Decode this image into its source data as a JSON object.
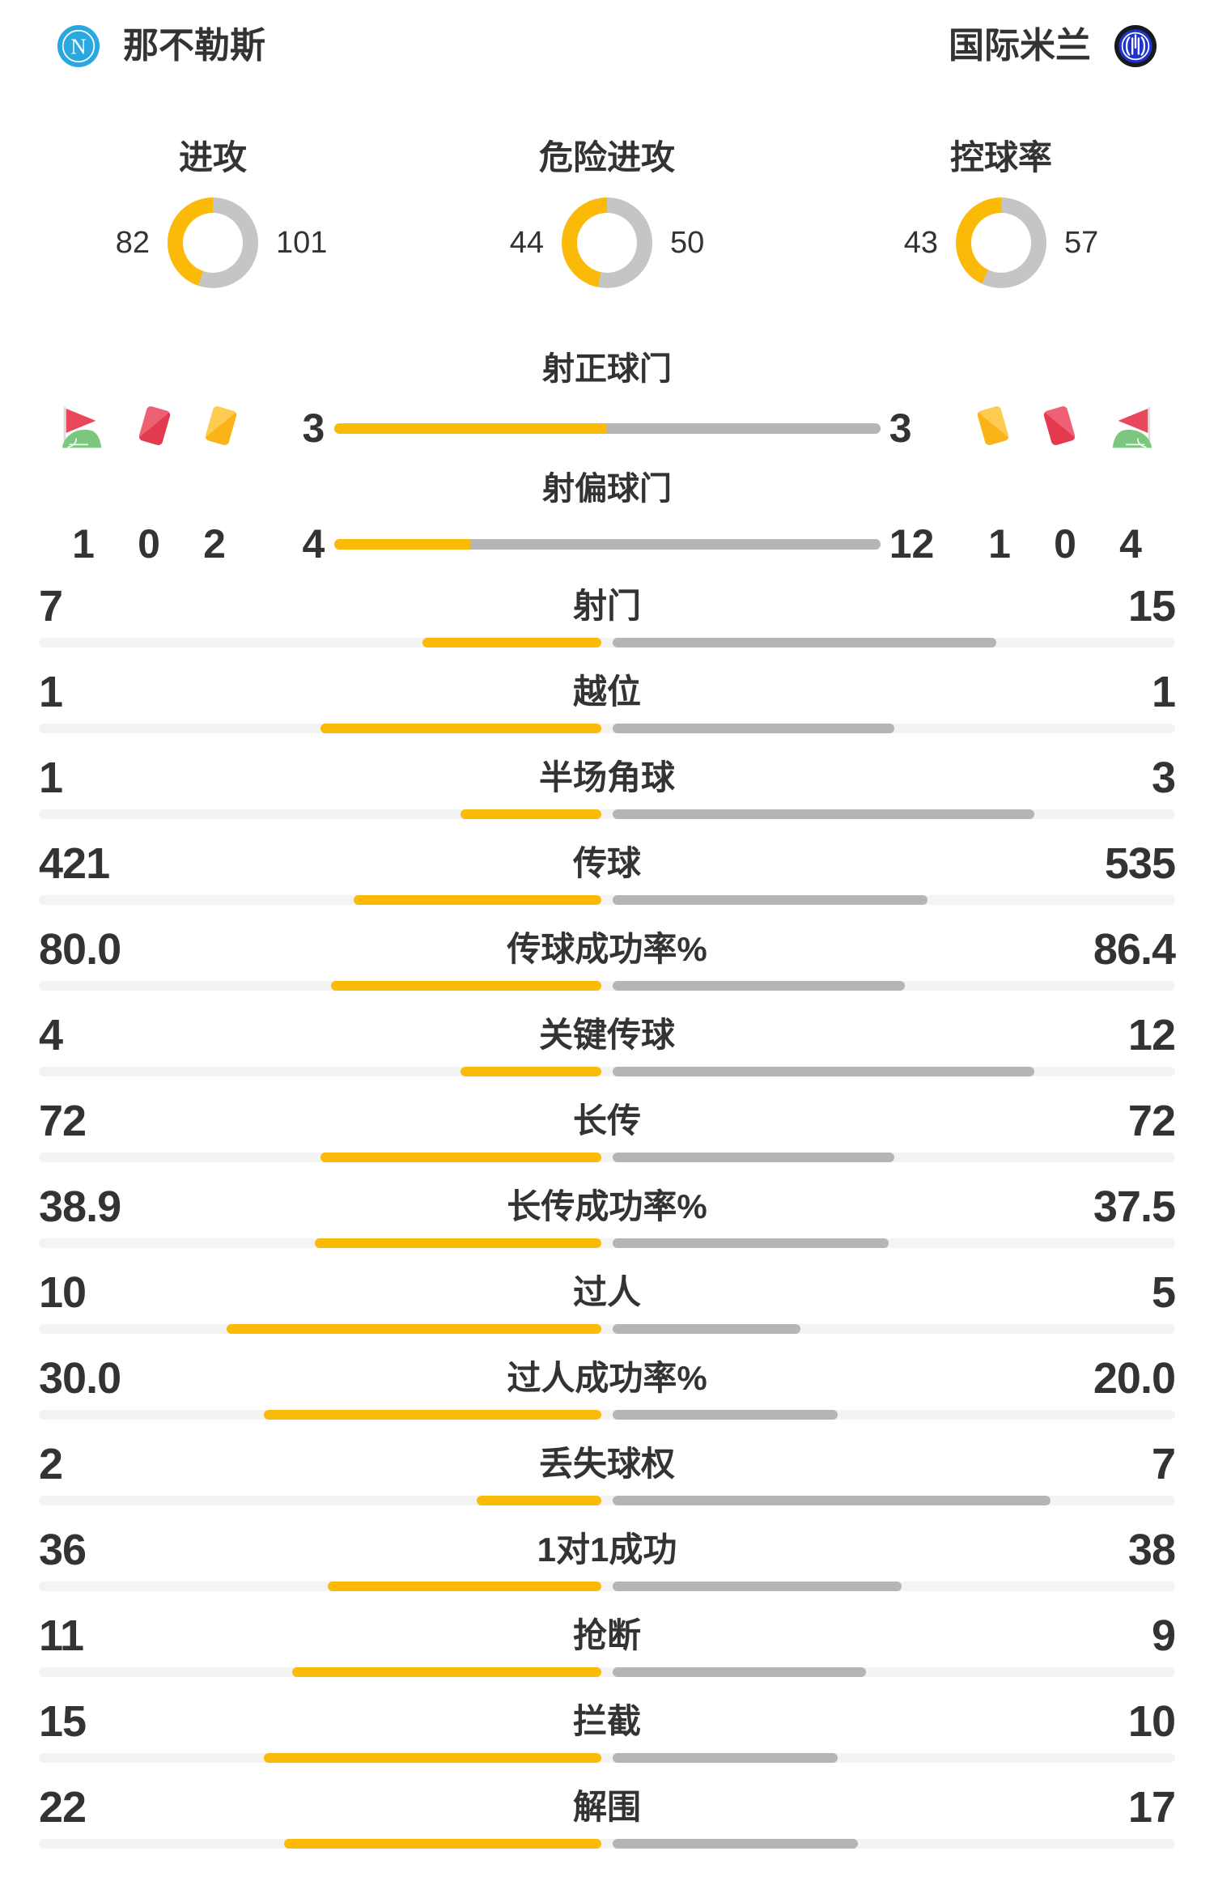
{
  "header": {
    "home_team": "那不勒斯",
    "away_team": "国际米兰"
  },
  "colors": {
    "home_fill": "#FBB908",
    "away_fill": "#B5B5B5",
    "bar_track": "#F3F3F3",
    "donut_away": "#C5C5C5",
    "text": "#333333",
    "napoli_blue": "#29A8E0",
    "inter_blue": "#1E32CE",
    "card_red": "#E8475C",
    "card_yellow": "#FBBE33",
    "grass_green": "#7CC67F"
  },
  "chart_data": {
    "type": "bar",
    "legend": {
      "home_color": "#FBB908",
      "away_color": "#B5B5B5"
    },
    "donuts": [
      {
        "label": "进攻",
        "home": 82,
        "away": 101
      },
      {
        "label": "危险进攻",
        "home": 44,
        "away": 50
      },
      {
        "label": "控球率",
        "home": 43,
        "away": 57
      }
    ],
    "shot_rows": [
      {
        "label": "射正球门",
        "home": 3,
        "away": 3
      },
      {
        "label": "射偏球门",
        "home": 4,
        "away": 12
      }
    ],
    "cards": {
      "home": {
        "corner_flags": 1,
        "red_cards": 0,
        "yellow_cards": 2
      },
      "away": {
        "yellow_cards": 1,
        "red_cards": 0,
        "corner_flags": 4
      }
    },
    "stats": [
      {
        "label": "射门",
        "home": 7,
        "away": 15
      },
      {
        "label": "越位",
        "home": 1,
        "away": 1
      },
      {
        "label": "半场角球",
        "home": 1,
        "away": 3
      },
      {
        "label": "传球",
        "home": 421,
        "away": 535
      },
      {
        "label": "传球成功率%",
        "home": "80.0",
        "away": "86.4"
      },
      {
        "label": "关键传球",
        "home": 4,
        "away": 12
      },
      {
        "label": "长传",
        "home": 72,
        "away": 72
      },
      {
        "label": "长传成功率%",
        "home": "38.9",
        "away": "37.5"
      },
      {
        "label": "过人",
        "home": 10,
        "away": 5
      },
      {
        "label": "过人成功率%",
        "home": "30.0",
        "away": "20.0"
      },
      {
        "label": "丢失球权",
        "home": 2,
        "away": 7
      },
      {
        "label": "1对1成功",
        "home": 36,
        "away": 38
      },
      {
        "label": "抢断",
        "home": 11,
        "away": 9
      },
      {
        "label": "拦截",
        "home": 15,
        "away": 10
      },
      {
        "label": "解围",
        "home": 22,
        "away": 17
      }
    ]
  }
}
